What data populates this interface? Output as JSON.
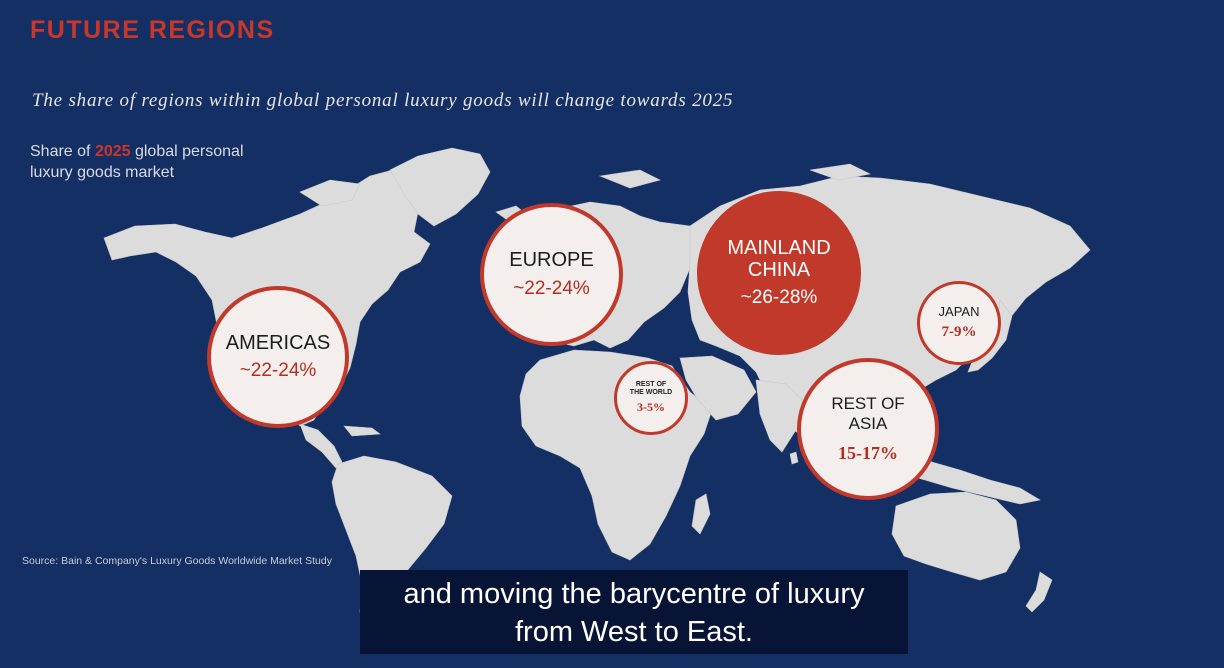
{
  "slide": {
    "title": "FUTURE REGIONS",
    "subtitle": "The share of regions within global personal luxury goods will change towards 2025",
    "share_label_prefix": "Share of ",
    "share_label_year": "2025",
    "share_label_suffix_line1": " global personal",
    "share_label_line2": "luxury goods market",
    "source": "Source: Bain & Company's Luxury Goods Worldwide Market Study"
  },
  "regions": {
    "americas": {
      "name": "AMERICAS",
      "value": "~22-24%"
    },
    "europe": {
      "name": "EUROPE",
      "value": "~22-24%"
    },
    "china": {
      "name_line1": "MAINLAND",
      "name_line2": "CHINA",
      "value": "~26-28%"
    },
    "japan": {
      "name": "JAPAN",
      "value": "7-9%"
    },
    "rest_of_world": {
      "name_line1": "REST OF",
      "name_line2": "THE WORLD",
      "value": "3-5%"
    },
    "rest_of_asia": {
      "name_line1": "REST OF",
      "name_line2": "ASIA",
      "value": "15-17%"
    }
  },
  "caption": {
    "line1": "and moving the barycentre of luxury",
    "line2": "from West to East."
  },
  "colors": {
    "background": "#142f63",
    "accent_red": "#c0392b",
    "land": "#dcdcdc",
    "bubble_fill": "#f4efec",
    "caption_bg": "#081436"
  }
}
